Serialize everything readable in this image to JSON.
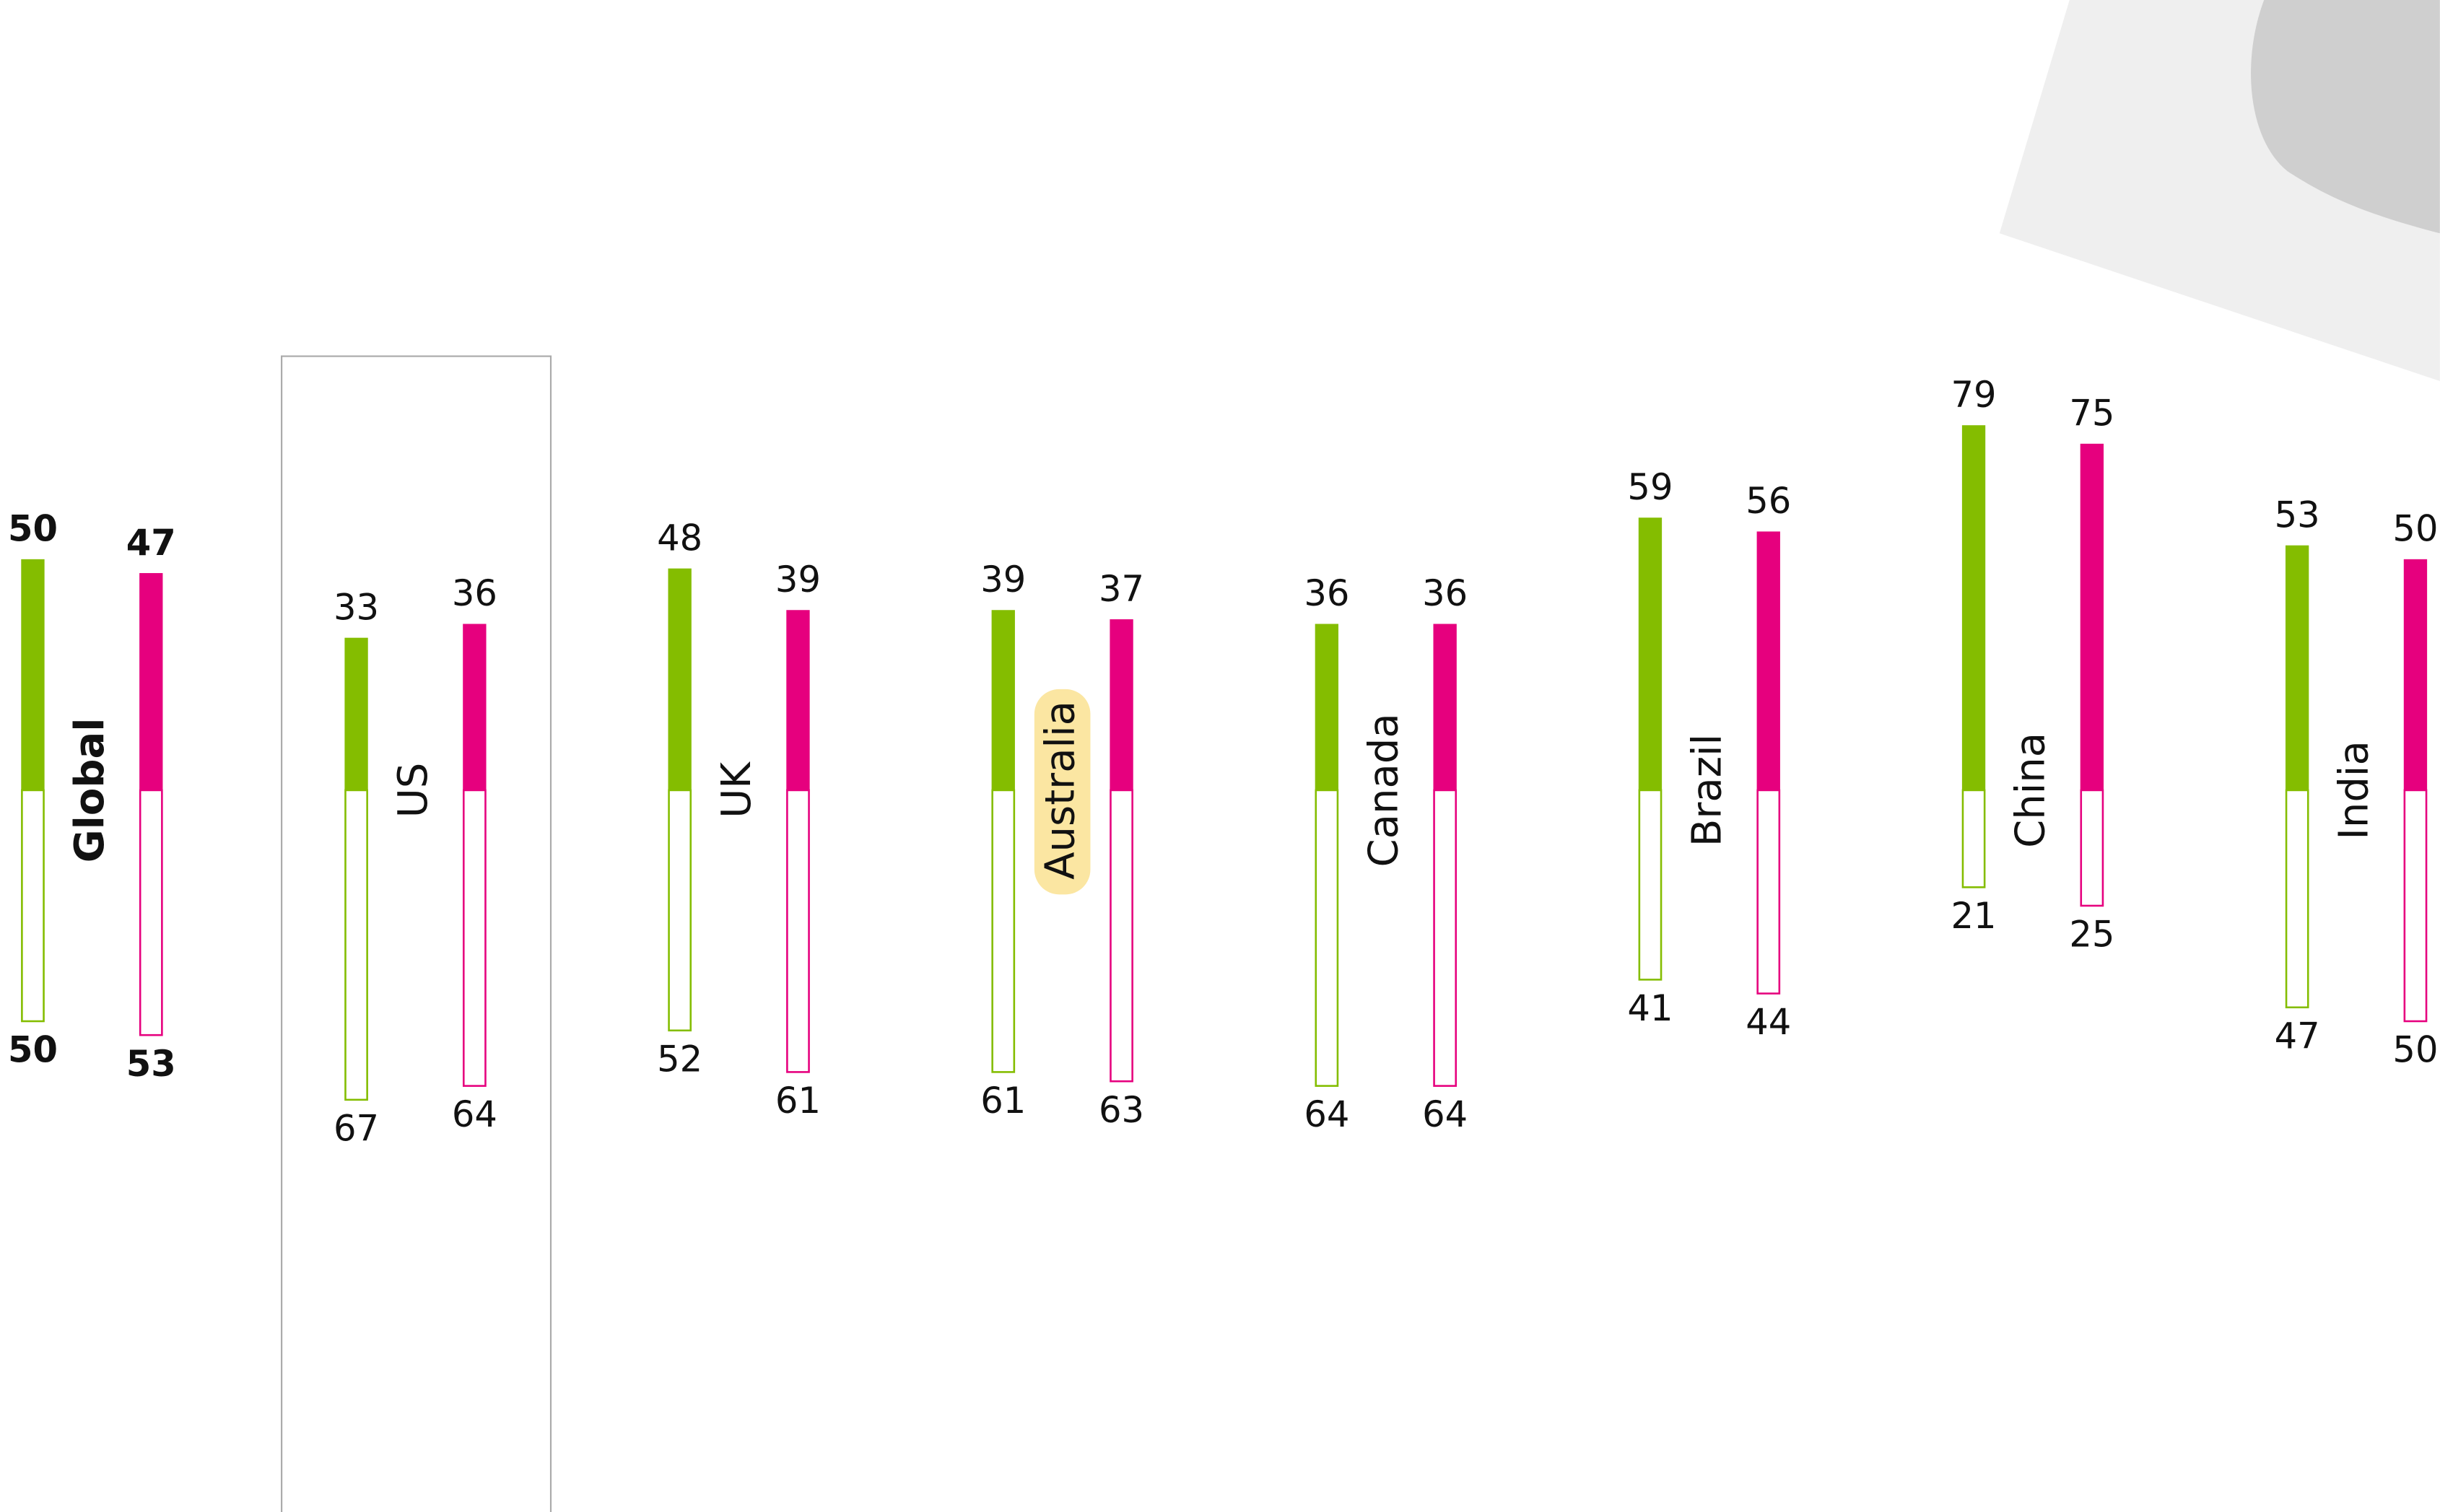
{
  "chart_data": {
    "type": "diverging-bar",
    "categories": [
      "Global",
      "US",
      "UK",
      "Australia",
      "Canada",
      "Brazil",
      "China",
      "India"
    ],
    "series": [
      {
        "color": "#84bd00",
        "values": [
          50,
          33,
          48,
          39,
          36,
          59,
          79,
          53
        ],
        "lower_values": [
          50,
          67,
          52,
          61,
          64,
          41,
          21,
          47
        ]
      },
      {
        "color": "#e6007e",
        "values": [
          47,
          36,
          39,
          37,
          36,
          56,
          75,
          50
        ],
        "lower_values": [
          53,
          64,
          61,
          63,
          64,
          44,
          25,
          50
        ]
      }
    ],
    "ylim": [
      -100,
      100
    ],
    "bold_category": "Global",
    "boxed_category": "US",
    "highlighted_category": "Australia",
    "highlight_color": "#fbe6a2"
  }
}
